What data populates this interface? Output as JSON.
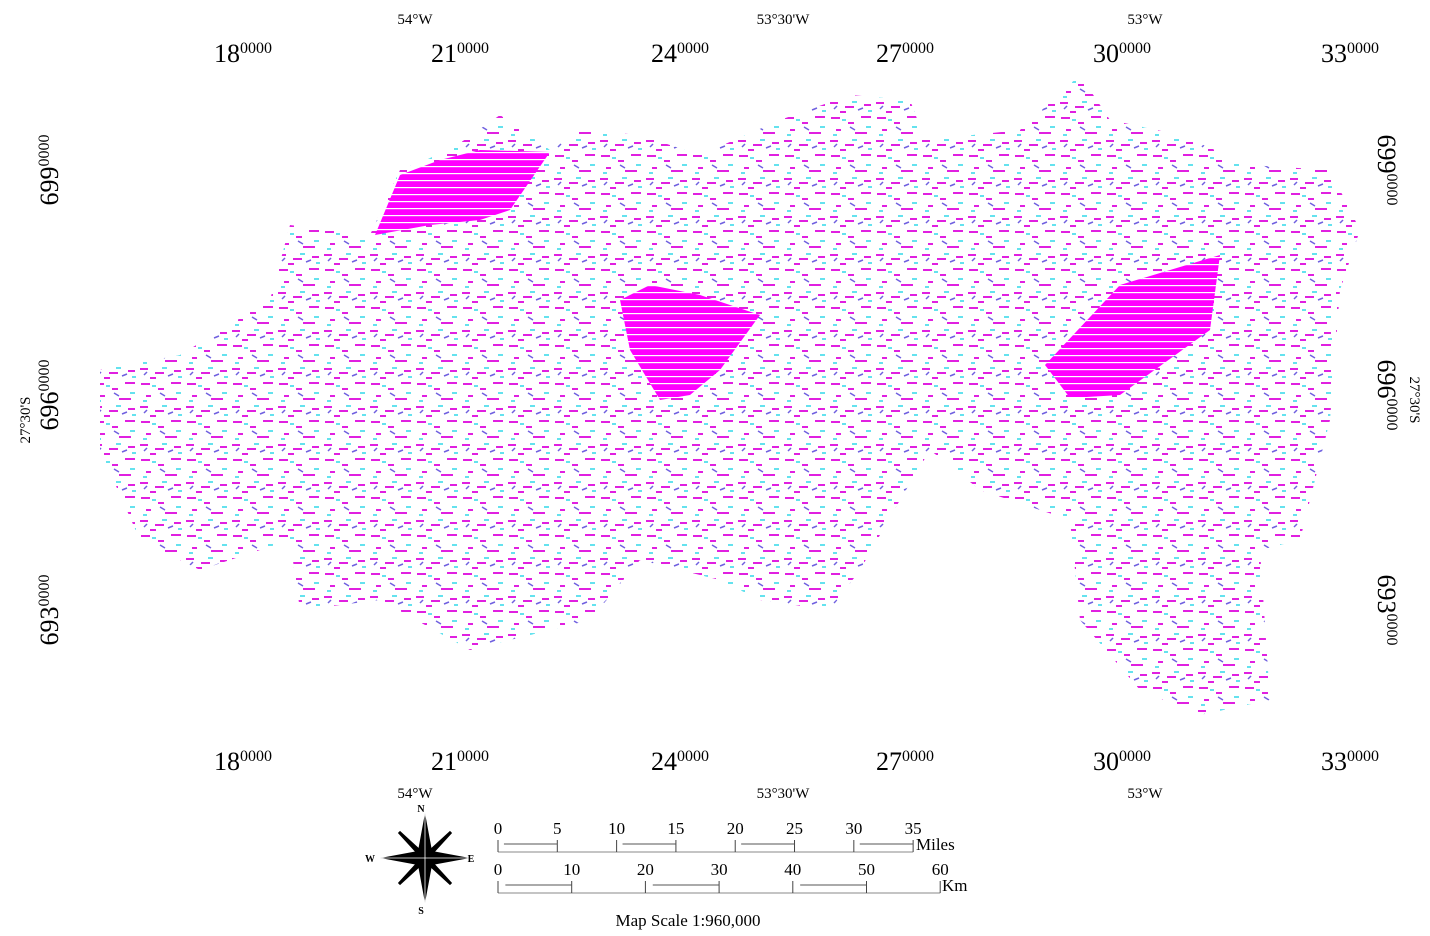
{
  "longitude_labels": [
    "54°W",
    "53°30'W",
    "53°W"
  ],
  "easting_labels": [
    {
      "major": "18",
      "minor": "0000"
    },
    {
      "major": "21",
      "minor": "0000"
    },
    {
      "major": "24",
      "minor": "0000"
    },
    {
      "major": "27",
      "minor": "0000"
    },
    {
      "major": "30",
      "minor": "0000"
    },
    {
      "major": "33",
      "minor": "0000"
    }
  ],
  "northing_labels": [
    {
      "major": "699",
      "minor": "0000"
    },
    {
      "major": "696",
      "minor": "0000"
    },
    {
      "major": "693",
      "minor": "0000"
    }
  ],
  "latitude_label": "27°30'S",
  "compass": {
    "north": "N",
    "south": "S",
    "east": "E",
    "west": "W"
  },
  "scale_bar": {
    "miles": {
      "ticks": [
        0,
        5,
        10,
        15,
        20,
        25,
        30,
        35
      ],
      "unit": "Miles"
    },
    "km": {
      "ticks": [
        0,
        10,
        20,
        30,
        40,
        50,
        60
      ],
      "unit": "Km"
    }
  },
  "scale_text": "Map Scale 1:960,000"
}
